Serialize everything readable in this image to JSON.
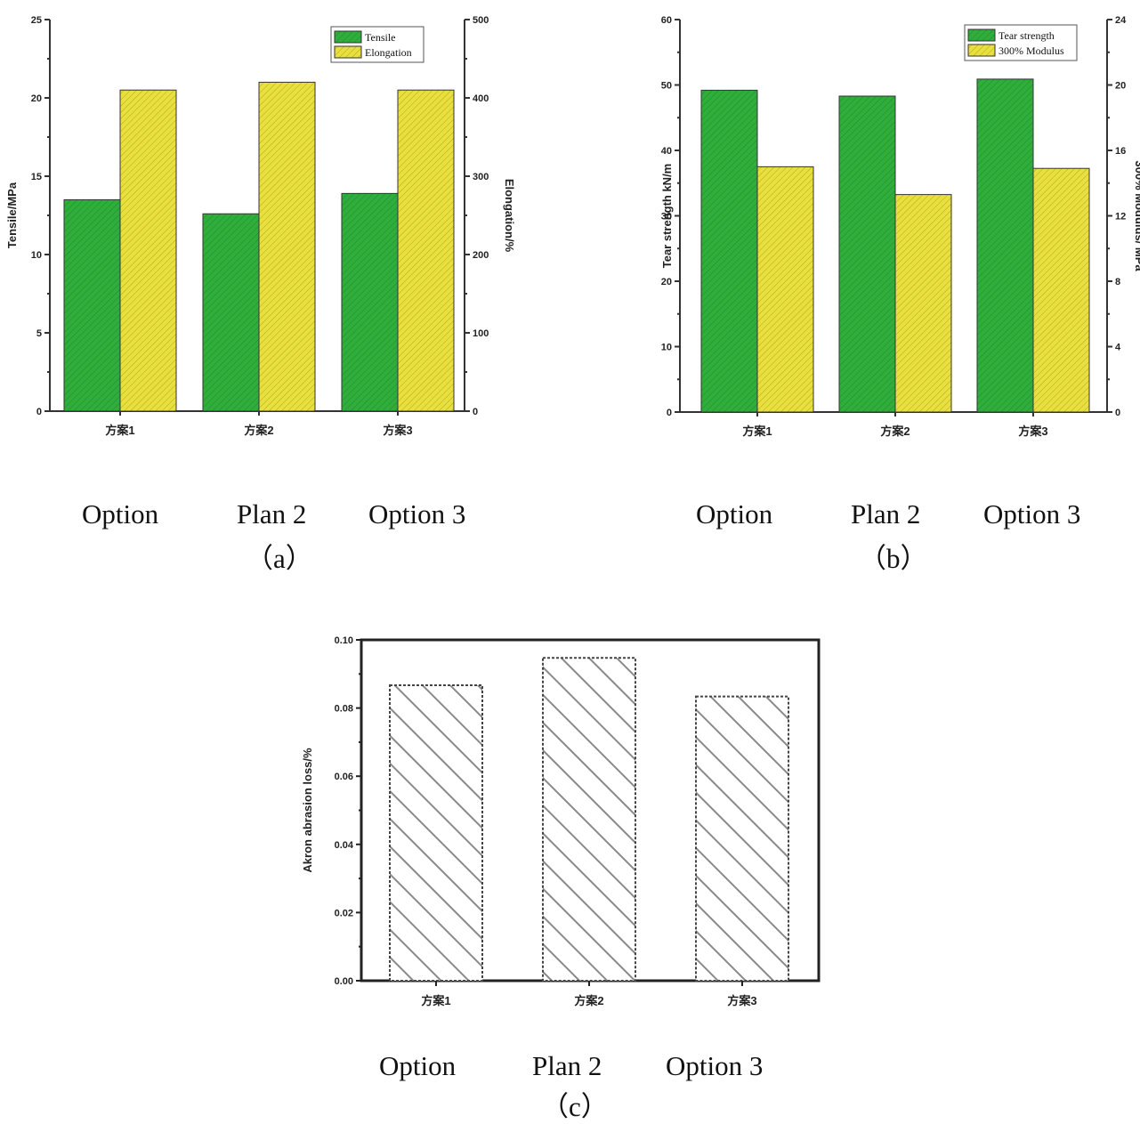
{
  "chart_data": [
    {
      "id": "a",
      "type": "bar",
      "categories": [
        "方案1",
        "方案2",
        "方案3"
      ],
      "series": [
        {
          "name": "Tensile",
          "axis": "left",
          "color": "#2fae3c",
          "values": [
            13.5,
            12.6,
            13.9
          ]
        },
        {
          "name": "Elongation",
          "axis": "right",
          "color": "#e8e040",
          "values": [
            410,
            420,
            410
          ]
        }
      ],
      "ylabel": "Tensile/MPa",
      "ylim": [
        0,
        25
      ],
      "yticks": [
        "0",
        "5",
        "10",
        "15",
        "20",
        "25"
      ],
      "y2label": "Elongation/%",
      "y2lim": [
        0,
        500
      ],
      "y2ticks": [
        "0",
        "100",
        "200",
        "300",
        "400",
        "500"
      ],
      "legend": "top-right",
      "grid": false,
      "caption_options": [
        "Option",
        "Plan 2",
        "Option 3"
      ],
      "caption_letter": "（a）"
    },
    {
      "id": "b",
      "type": "bar",
      "categories": [
        "方案1",
        "方案2",
        "方案3"
      ],
      "series": [
        {
          "name": "Tear strength",
          "axis": "left",
          "color": "#2fae3c",
          "values": [
            49.2,
            48.3,
            50.9
          ]
        },
        {
          "name": "300% Modulus",
          "axis": "right",
          "color": "#e8e040",
          "values": [
            15.0,
            13.3,
            14.9
          ]
        }
      ],
      "ylabel": "Tear strength kN/m",
      "ylim": [
        0,
        60
      ],
      "yticks": [
        "0",
        "10",
        "20",
        "30",
        "40",
        "50",
        "60"
      ],
      "y2label": "300% Modulus/ MPa",
      "y2lim": [
        0,
        24
      ],
      "y2ticks": [
        "0",
        "4",
        "8",
        "12",
        "16",
        "20",
        "24"
      ],
      "legend": "top-right",
      "grid": false,
      "caption_options": [
        "Option",
        "Plan 2",
        "Option 3"
      ],
      "caption_letter": "（b）"
    },
    {
      "id": "c",
      "type": "bar",
      "categories": [
        "方案1",
        "方案2",
        "方案3"
      ],
      "series": [
        {
          "name": "",
          "color": "#8a8a8a",
          "values": [
            0.0867,
            0.0947,
            0.0834
          ]
        }
      ],
      "ylabel": "Akron abrasion loss/%",
      "ylim": [
        0,
        0.1
      ],
      "yticks": [
        "0.00",
        "0.02",
        "0.04",
        "0.06",
        "0.08",
        "0.10"
      ],
      "legend": "none",
      "grid": false,
      "caption_options": [
        "Option",
        "Plan 2",
        "Option 3"
      ],
      "caption_letter": "（c）"
    }
  ]
}
